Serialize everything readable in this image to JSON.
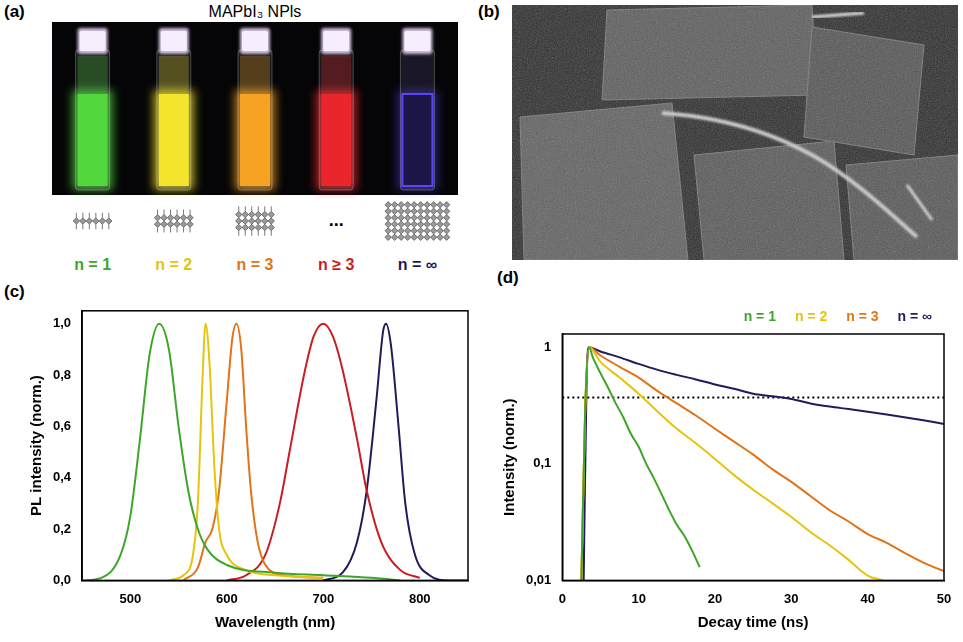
{
  "panels": {
    "a": {
      "letter": "(a)",
      "title": "MAPbI₃ NPls",
      "labels": [
        {
          "text": "n = 1",
          "color": "#3fa52a"
        },
        {
          "text": "n = 2",
          "color": "#e6c40e"
        },
        {
          "text": "n = 3",
          "color": "#e07418"
        },
        {
          "text": "n ≥ 3",
          "color": "#c81e23"
        },
        {
          "text": "n = ∞",
          "color": "#221a5a"
        }
      ],
      "ellipsis": "..."
    },
    "b": {
      "letter": "(b)"
    }
  },
  "chart_data": [
    {
      "panel": "(c)",
      "type": "line",
      "x_label": "Wavelength (nm)",
      "y_label": "PL intensity (norm.)",
      "xlim": [
        450,
        850
      ],
      "xticks": [
        500,
        600,
        700,
        800
      ],
      "ylim": [
        0,
        1.05
      ],
      "yticks": [
        {
          "value": 0,
          "label": "0,0"
        },
        {
          "value": 0.2,
          "label": "0,2"
        },
        {
          "value": 0.4,
          "label": "0,4"
        },
        {
          "value": 0.6,
          "label": "0,6"
        },
        {
          "value": 0.8,
          "label": "0,8"
        },
        {
          "value": 1,
          "label": "1,0"
        }
      ],
      "grid": false,
      "series": [
        {
          "color": "#3fa52a",
          "x": [
            450,
            470,
            490,
            500,
            510,
            520,
            530,
            540,
            550,
            560,
            570,
            580,
            600,
            650,
            700,
            750,
            780
          ],
          "values": [
            0,
            0.01,
            0.1,
            0.25,
            0.55,
            0.88,
            1.0,
            0.9,
            0.6,
            0.35,
            0.2,
            0.12,
            0.06,
            0.03,
            0.02,
            0.01,
            0
          ]
        },
        {
          "color": "#e6c40e",
          "x": [
            540,
            555,
            565,
            570,
            575,
            578,
            582,
            587,
            592,
            600,
            620,
            650,
            700
          ],
          "values": [
            0,
            0.02,
            0.1,
            0.3,
            0.8,
            1.0,
            0.85,
            0.45,
            0.2,
            0.1,
            0.04,
            0.02,
            0.01
          ]
        },
        {
          "color": "#e07418",
          "x": [
            555,
            570,
            578,
            585,
            592,
            600,
            606,
            610,
            615,
            620,
            625,
            632,
            640,
            660,
            700
          ],
          "values": [
            0,
            0.05,
            0.15,
            0.2,
            0.35,
            0.7,
            0.95,
            1.0,
            0.9,
            0.6,
            0.35,
            0.15,
            0.06,
            0.02,
            0.01
          ]
        },
        {
          "color": "#c81e23",
          "x": [
            600,
            620,
            640,
            655,
            665,
            680,
            690,
            700,
            710,
            720,
            735,
            745,
            760,
            780,
            800
          ],
          "values": [
            0,
            0.02,
            0.1,
            0.3,
            0.5,
            0.8,
            0.95,
            1.0,
            0.95,
            0.82,
            0.55,
            0.35,
            0.15,
            0.04,
            0.01
          ]
        },
        {
          "color": "#221a5a",
          "x": [
            700,
            720,
            735,
            745,
            755,
            762,
            765,
            770,
            778,
            785,
            795,
            810,
            830,
            850
          ],
          "values": [
            0,
            0.03,
            0.15,
            0.35,
            0.7,
            0.97,
            1.0,
            0.92,
            0.6,
            0.3,
            0.1,
            0.02,
            0,
            0
          ]
        }
      ]
    },
    {
      "panel": "(d)",
      "type": "line",
      "log": "y",
      "x_label": "Decay time (ns)",
      "y_label": "Intensity (norm.)",
      "xlim": [
        0,
        50
      ],
      "xticks": [
        0,
        10,
        20,
        30,
        40,
        50
      ],
      "ylim": [
        0.01,
        1.3
      ],
      "yticks": [
        {
          "value": 0.01,
          "label": "0,01"
        },
        {
          "value": 0.1,
          "label": "0,1"
        },
        1
      ],
      "grid": false,
      "legend": "top",
      "series": [
        {
          "name": "n = 1",
          "color": "#3fa52a",
          "x": [
            2.5,
            3,
            3.5,
            4,
            5,
            6,
            7,
            8,
            9,
            10,
            11,
            12,
            13,
            14,
            15,
            16,
            17,
            18
          ],
          "values": [
            0.01,
            0.3,
            1.0,
            0.82,
            0.6,
            0.45,
            0.33,
            0.25,
            0.18,
            0.14,
            0.1,
            0.075,
            0.055,
            0.04,
            0.03,
            0.024,
            0.018,
            0.013
          ]
        },
        {
          "name": "n = 2",
          "color": "#e6c40e",
          "x": [
            2.5,
            3,
            3.5,
            5,
            7.5,
            10,
            12.5,
            15,
            17.5,
            20,
            22.5,
            25,
            27.5,
            30,
            32.5,
            35,
            37.5,
            40,
            42
          ],
          "values": [
            0.01,
            0.3,
            1.0,
            0.75,
            0.55,
            0.4,
            0.28,
            0.2,
            0.15,
            0.11,
            0.08,
            0.06,
            0.046,
            0.035,
            0.026,
            0.02,
            0.015,
            0.011,
            0.01
          ]
        },
        {
          "name": "n = 3",
          "color": "#e07418",
          "x": [
            2.5,
            3,
            3.5,
            5,
            7.5,
            10,
            12.5,
            15,
            17.5,
            20,
            22.5,
            25,
            27.5,
            30,
            32.5,
            35,
            37.5,
            40,
            42.5,
            45,
            47.5,
            50
          ],
          "values": [
            0.01,
            0.3,
            1.0,
            0.85,
            0.68,
            0.55,
            0.42,
            0.33,
            0.26,
            0.2,
            0.155,
            0.12,
            0.09,
            0.07,
            0.053,
            0.04,
            0.032,
            0.025,
            0.021,
            0.017,
            0.014,
            0.012
          ]
        },
        {
          "name": "n = ∞",
          "color": "#221a5a",
          "x": [
            2.8,
            3.2,
            3.5,
            5,
            7.5,
            10,
            12.5,
            15,
            17.5,
            20,
            22.5,
            25,
            27.5,
            30,
            32.5,
            35,
            37.5,
            40,
            42.5,
            45,
            47.5,
            50
          ],
          "values": [
            0.01,
            0.6,
            1.0,
            0.92,
            0.82,
            0.72,
            0.64,
            0.58,
            0.53,
            0.48,
            0.44,
            0.4,
            0.38,
            0.36,
            0.33,
            0.31,
            0.295,
            0.28,
            0.265,
            0.25,
            0.235,
            0.22
          ]
        }
      ],
      "reference_lines": [
        {
          "y": 0.37,
          "line_style": "dotted",
          "color": "#000000"
        }
      ]
    }
  ]
}
